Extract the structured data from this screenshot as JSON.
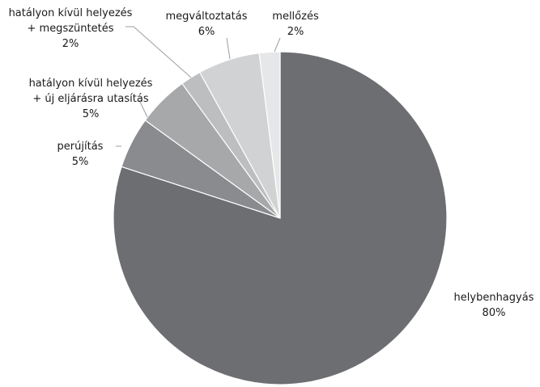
{
  "chart_data": {
    "type": "pie",
    "title": "",
    "start_angle_deg": 0,
    "direction": "clockwise",
    "slices": [
      {
        "label_lines": [
          "helybenhagyás"
        ],
        "value_label": "80%",
        "value": 80,
        "color": "#6d6e71"
      },
      {
        "label_lines": [
          "perújítás"
        ],
        "value_label": "5%",
        "value": 5,
        "color": "#8a8b8e"
      },
      {
        "label_lines": [
          "hatályon kívül helyezés",
          "+ új eljárásra utasítás"
        ],
        "value_label": "5%",
        "value": 5,
        "color": "#a7a8aa"
      },
      {
        "label_lines": [
          "hatályon kívül helyezés",
          "+ megszüntetés"
        ],
        "value_label": "2%",
        "value": 2,
        "color": "#bdbec0"
      },
      {
        "label_lines": [
          "megváltoztatás"
        ],
        "value_label": "6%",
        "value": 6,
        "color": "#d1d2d4"
      },
      {
        "label_lines": [
          "mellőzés"
        ],
        "value_label": "2%",
        "value": 2,
        "color": "#e6e7e8"
      }
    ]
  }
}
